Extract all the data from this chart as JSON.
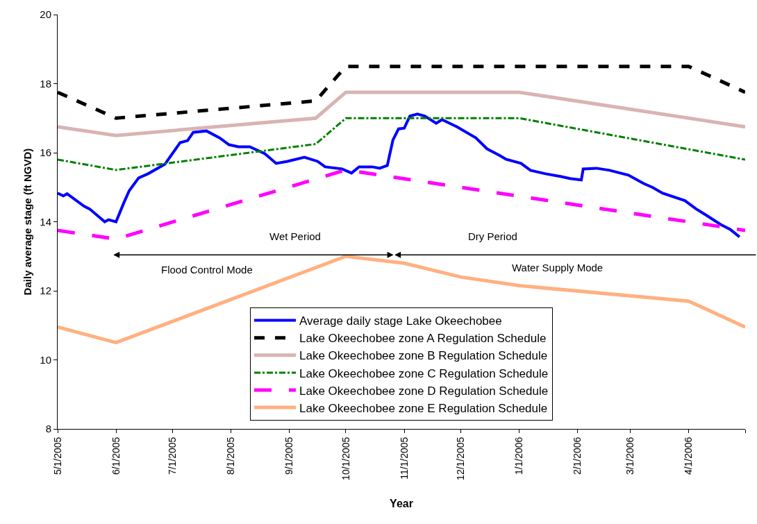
{
  "chart_data": {
    "type": "line",
    "xlabel": "Year",
    "ylabel": "Daily average stage (ft NGVD)",
    "xlim": [
      "2005-05-01",
      "2006-05-01"
    ],
    "xticks": [
      {
        "value": "2005-05-01",
        "label": "5/1/2005"
      },
      {
        "value": "2005-06-01",
        "label": "6/1/2005"
      },
      {
        "value": "2005-07-01",
        "label": "7/1/2005"
      },
      {
        "value": "2005-08-01",
        "label": "8/1/2005"
      },
      {
        "value": "2005-09-01",
        "label": "9/1/2005"
      },
      {
        "value": "2005-10-01",
        "label": "10/1/2005"
      },
      {
        "value": "2005-11-01",
        "label": "11/1/2005"
      },
      {
        "value": "2005-12-01",
        "label": "12/1/2005"
      },
      {
        "value": "2006-01-01",
        "label": "1/1/2006"
      },
      {
        "value": "2006-02-01",
        "label": "2/1/2006"
      },
      {
        "value": "2006-03-01",
        "label": "3/1/2006"
      },
      {
        "value": "2006-04-01",
        "label": "4/1/2006"
      },
      {
        "value": "2006-05-01",
        "label": null
      }
    ],
    "ylim": [
      8,
      20
    ],
    "yticks": [
      8,
      10,
      12,
      14,
      16,
      18,
      20
    ],
    "legend": "bottom",
    "marker": "none",
    "annotations": [
      "Wet Period",
      "Dry Period",
      "Flood Control Mode",
      "Water Supply Mode"
    ],
    "series": [
      {
        "name": "Average daily stage Lake Okeechobee",
        "color": "#0000ff",
        "line_style": "solid",
        "x": [
          "2005-05-01",
          "2005-05-04",
          "2005-05-06",
          "2005-05-15",
          "2005-05-18",
          "2005-05-26",
          "2005-05-28",
          "2005-06-01",
          "2005-06-05",
          "2005-06-08",
          "2005-06-13",
          "2005-06-18",
          "2005-06-27",
          "2005-07-05",
          "2005-07-09",
          "2005-07-12",
          "2005-07-19",
          "2005-07-26",
          "2005-07-31",
          "2005-08-05",
          "2005-08-11",
          "2005-08-19",
          "2005-08-25",
          "2005-08-31",
          "2005-09-09",
          "2005-09-16",
          "2005-09-20",
          "2005-09-29",
          "2005-10-04",
          "2005-10-08",
          "2005-10-15",
          "2005-10-19",
          "2005-10-23",
          "2005-10-26",
          "2005-10-29",
          "2005-11-01",
          "2005-11-04",
          "2005-11-08",
          "2005-11-12",
          "2005-11-18",
          "2005-11-21",
          "2005-11-29",
          "2005-12-09",
          "2005-12-15",
          "2005-12-22",
          "2005-12-25",
          "2006-01-02",
          "2006-01-07",
          "2006-01-15",
          "2006-01-23",
          "2006-01-28",
          "2006-02-03",
          "2006-02-04",
          "2006-02-11",
          "2006-02-18",
          "2006-02-28",
          "2006-03-08",
          "2006-03-13",
          "2006-03-18",
          "2006-03-30",
          "2006-04-05",
          "2006-04-10",
          "2006-04-18",
          "2006-04-23",
          "2006-04-28"
        ],
        "values": [
          14.83,
          14.75,
          14.81,
          14.45,
          14.37,
          14.0,
          14.06,
          14.0,
          14.53,
          14.9,
          15.27,
          15.39,
          15.67,
          16.29,
          16.35,
          16.59,
          16.63,
          16.43,
          16.23,
          16.17,
          16.17,
          15.97,
          15.69,
          15.75,
          15.87,
          15.75,
          15.59,
          15.53,
          15.41,
          15.59,
          15.59,
          15.55,
          15.63,
          16.37,
          16.69,
          16.71,
          17.06,
          17.12,
          17.06,
          16.85,
          16.96,
          16.75,
          16.43,
          16.11,
          15.91,
          15.81,
          15.69,
          15.49,
          15.39,
          15.31,
          15.25,
          15.21,
          15.53,
          15.55,
          15.49,
          15.35,
          15.11,
          14.99,
          14.83,
          14.61,
          14.37,
          14.2,
          13.92,
          13.78,
          13.56
        ]
      },
      {
        "name": "Lake Okeechobee zone A Regulation Schedule",
        "color": "#000000",
        "line_style": "dashed",
        "x": [
          "2005-05-01",
          "2005-06-01",
          "2005-09-15",
          "2005-10-01",
          "2006-04-01",
          "2006-05-01"
        ],
        "values": [
          17.75,
          17.0,
          17.5,
          18.5,
          18.5,
          17.75
        ]
      },
      {
        "name": "Lake Okeechobee zone B Regulation Schedule",
        "color": "#d9b3b3",
        "line_style": "solid",
        "x": [
          "2005-05-01",
          "2005-06-01",
          "2005-09-15",
          "2005-10-01",
          "2006-01-01",
          "2006-05-01"
        ],
        "values": [
          16.75,
          16.5,
          17.0,
          17.75,
          17.75,
          16.75
        ]
      },
      {
        "name": "Lake Okeechobee zone C Regulation Schedule",
        "color": "#008000",
        "line_style": "dashdot",
        "x": [
          "2005-05-01",
          "2005-06-01",
          "2005-09-15",
          "2005-10-01",
          "2006-01-01",
          "2006-05-01"
        ],
        "values": [
          15.8,
          15.5,
          16.25,
          17.0,
          17.0,
          15.8
        ]
      },
      {
        "name": "Lake Okeechobee zone D Regulation Schedule",
        "color": "#ff00ff",
        "line_style": "longdash",
        "x": [
          "2005-05-01",
          "2005-06-01",
          "2005-10-01",
          "2006-05-01"
        ],
        "values": [
          13.75,
          13.5,
          15.5,
          13.75
        ]
      },
      {
        "name": "Lake Okeechobee zone E Regulation Schedule",
        "color": "#ffb080",
        "line_style": "solid",
        "x": [
          "2005-05-01",
          "2005-06-01",
          "2005-10-01",
          "2005-11-01",
          "2005-12-01",
          "2006-01-01",
          "2006-04-01",
          "2006-05-01"
        ],
        "values": [
          10.95,
          10.5,
          13.0,
          12.8,
          12.4,
          12.15,
          11.7,
          10.95
        ]
      }
    ]
  }
}
